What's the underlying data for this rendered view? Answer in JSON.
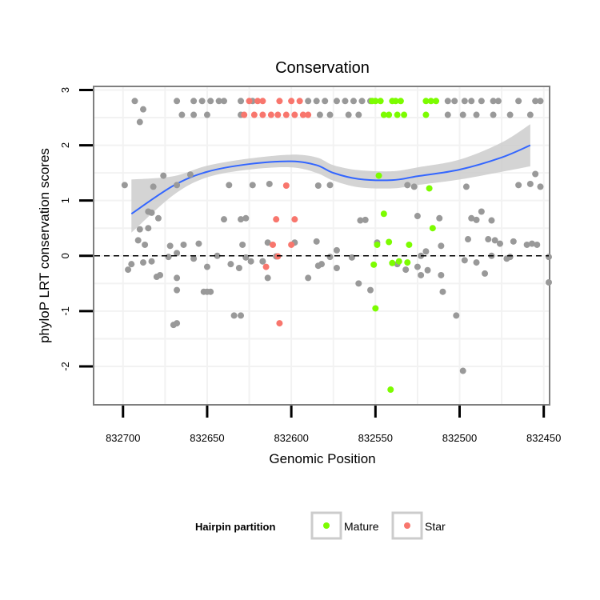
{
  "chart_data": {
    "type": "scatter",
    "title": "Conservation",
    "xlabel": "Genomic Position",
    "ylabel": "phyloP LRT conservation scores",
    "x_reversed": true,
    "xlim": [
      832717,
      832447
    ],
    "ylim": [
      -2.68,
      3.05
    ],
    "xticks": [
      832700,
      832650,
      832600,
      832550,
      832500,
      832450
    ],
    "yticks": [
      -2,
      -1,
      0,
      1,
      2,
      3
    ],
    "reference_line": {
      "y": 0,
      "style": "dashed"
    },
    "legend": {
      "title": "Hairpin partition",
      "position": "bottom",
      "entries": [
        {
          "label": "Mature",
          "color": "#7cfc00"
        },
        {
          "label": "Star",
          "color": "#f8766d"
        }
      ]
    },
    "colors": {
      "other": "#999999",
      "Mature": "#7cfc00",
      "Star": "#f8766d",
      "smooth": "#3366ff",
      "band": "#cccccc"
    },
    "smooth": {
      "x": [
        832695,
        832670,
        832650,
        832625,
        832600,
        832585,
        832575,
        832560,
        832540,
        832525,
        832500,
        832475,
        832458
      ],
      "y": [
        0.76,
        1.27,
        1.52,
        1.66,
        1.71,
        1.64,
        1.5,
        1.39,
        1.37,
        1.44,
        1.56,
        1.78,
        2.0
      ],
      "lower": [
        0.42,
        1.1,
        1.42,
        1.56,
        1.6,
        1.5,
        1.36,
        1.24,
        1.22,
        1.28,
        1.38,
        1.52,
        1.62
      ],
      "upper": [
        1.38,
        1.44,
        1.63,
        1.76,
        1.83,
        1.78,
        1.64,
        1.55,
        1.53,
        1.6,
        1.74,
        2.05,
        2.38
      ]
    },
    "series": [
      {
        "name": "Mature",
        "points": [
          [
            832552,
            2.8
          ],
          [
            832550,
            2.8
          ],
          [
            832547,
            2.8
          ],
          [
            832540,
            2.8
          ],
          [
            832538,
            2.8
          ],
          [
            832535,
            2.8
          ],
          [
            832520,
            2.8
          ],
          [
            832517,
            2.8
          ],
          [
            832514,
            2.8
          ],
          [
            832545,
            2.55
          ],
          [
            832542,
            2.55
          ],
          [
            832537,
            2.55
          ],
          [
            832533,
            2.55
          ],
          [
            832520,
            2.55
          ],
          [
            832548,
            1.45
          ],
          [
            832518,
            1.22
          ],
          [
            832545,
            0.76
          ],
          [
            832516,
            0.5
          ],
          [
            832542,
            0.25
          ],
          [
            832549,
            0.2
          ],
          [
            832551,
            -0.16
          ],
          [
            832540,
            -0.13
          ],
          [
            832536,
            -0.1
          ],
          [
            832531,
            -0.12
          ],
          [
            832550,
            -0.95
          ],
          [
            832541,
            -2.42
          ],
          [
            832530,
            0.2
          ]
        ]
      },
      {
        "name": "Star",
        "points": [
          [
            832625,
            2.8
          ],
          [
            832620,
            2.8
          ],
          [
            832617,
            2.8
          ],
          [
            832607,
            2.8
          ],
          [
            832600,
            2.8
          ],
          [
            832595,
            2.8
          ],
          [
            832628,
            2.55
          ],
          [
            832622,
            2.55
          ],
          [
            832617,
            2.55
          ],
          [
            832612,
            2.55
          ],
          [
            832608,
            2.55
          ],
          [
            832603,
            2.55
          ],
          [
            832598,
            2.55
          ],
          [
            832593,
            2.55
          ],
          [
            832590,
            2.55
          ],
          [
            832603,
            1.27
          ],
          [
            832609,
            0.66
          ],
          [
            832598,
            0.66
          ],
          [
            832611,
            0.2
          ],
          [
            832600,
            0.2
          ],
          [
            832615,
            -0.2
          ],
          [
            832608,
            -0.01
          ],
          [
            832607,
            -1.22
          ]
        ]
      },
      {
        "name": "",
        "points": [
          [
            832693,
            2.8
          ],
          [
            832668,
            2.8
          ],
          [
            832658,
            2.8
          ],
          [
            832653,
            2.8
          ],
          [
            832648,
            2.8
          ],
          [
            832643,
            2.8
          ],
          [
            832640,
            2.8
          ],
          [
            832630,
            2.8
          ],
          [
            832623,
            2.8
          ],
          [
            832590,
            2.8
          ],
          [
            832585,
            2.8
          ],
          [
            832580,
            2.8
          ],
          [
            832573,
            2.8
          ],
          [
            832568,
            2.8
          ],
          [
            832563,
            2.8
          ],
          [
            832558,
            2.8
          ],
          [
            832553,
            2.8
          ],
          [
            832507,
            2.8
          ],
          [
            832503,
            2.8
          ],
          [
            832497,
            2.8
          ],
          [
            832493,
            2.8
          ],
          [
            832487,
            2.8
          ],
          [
            832480,
            2.8
          ],
          [
            832477,
            2.8
          ],
          [
            832465,
            2.8
          ],
          [
            832455,
            2.8
          ],
          [
            832452,
            2.8
          ],
          [
            832665,
            2.55
          ],
          [
            832658,
            2.55
          ],
          [
            832650,
            2.55
          ],
          [
            832630,
            2.55
          ],
          [
            832583,
            2.55
          ],
          [
            832577,
            2.55
          ],
          [
            832566,
            2.55
          ],
          [
            832560,
            2.55
          ],
          [
            832507,
            2.55
          ],
          [
            832498,
            2.55
          ],
          [
            832490,
            2.55
          ],
          [
            832480,
            2.55
          ],
          [
            832470,
            2.55
          ],
          [
            832458,
            2.55
          ],
          [
            832688,
            2.65
          ],
          [
            832690,
            2.42
          ],
          [
            832699,
            1.28
          ],
          [
            832682,
            1.25
          ],
          [
            832676,
            1.45
          ],
          [
            832668,
            1.28
          ],
          [
            832660,
            1.47
          ],
          [
            832637,
            1.28
          ],
          [
            832623,
            1.28
          ],
          [
            832613,
            1.3
          ],
          [
            832584,
            1.27
          ],
          [
            832577,
            1.28
          ],
          [
            832531,
            1.28
          ],
          [
            832527,
            1.25
          ],
          [
            832496,
            1.25
          ],
          [
            832465,
            1.28
          ],
          [
            832458,
            1.3
          ],
          [
            832455,
            1.48
          ],
          [
            832452,
            1.25
          ],
          [
            832685,
            0.8
          ],
          [
            832683,
            0.78
          ],
          [
            832679,
            0.68
          ],
          [
            832640,
            0.66
          ],
          [
            832627,
            0.68
          ],
          [
            832630,
            0.66
          ],
          [
            832559,
            0.64
          ],
          [
            832556,
            0.65
          ],
          [
            832525,
            0.72
          ],
          [
            832512,
            0.68
          ],
          [
            832493,
            0.68
          ],
          [
            832490,
            0.65
          ],
          [
            832487,
            0.8
          ],
          [
            832481,
            0.64
          ],
          [
            832690,
            0.48
          ],
          [
            832685,
            0.5
          ],
          [
            832691,
            0.28
          ],
          [
            832687,
            0.2
          ],
          [
            832672,
            0.18
          ],
          [
            832664,
            0.2
          ],
          [
            832655,
            0.22
          ],
          [
            832629,
            0.2
          ],
          [
            832614,
            0.24
          ],
          [
            832598,
            0.24
          ],
          [
            832585,
            0.26
          ],
          [
            832573,
            0.1
          ],
          [
            832549,
            0.24
          ],
          [
            832520,
            0.08
          ],
          [
            832511,
            0.18
          ],
          [
            832495,
            0.3
          ],
          [
            832483,
            0.3
          ],
          [
            832479,
            0.28
          ],
          [
            832476,
            0.22
          ],
          [
            832468,
            0.26
          ],
          [
            832460,
            0.2
          ],
          [
            832457,
            0.22
          ],
          [
            832454,
            0.2
          ],
          [
            832447,
            -0.02
          ],
          [
            832697,
            -0.25
          ],
          [
            832695,
            -0.15
          ],
          [
            832688,
            -0.12
          ],
          [
            832683,
            -0.1
          ],
          [
            832680,
            -0.38
          ],
          [
            832678,
            -0.35
          ],
          [
            832673,
            -0.02
          ],
          [
            832668,
            0.05
          ],
          [
            832658,
            -0.05
          ],
          [
            832650,
            -0.2
          ],
          [
            832644,
            0.0
          ],
          [
            832636,
            -0.15
          ],
          [
            832631,
            -0.22
          ],
          [
            832627,
            -0.03
          ],
          [
            832624,
            -0.1
          ],
          [
            832617,
            -0.1
          ],
          [
            832609,
            -0.01
          ],
          [
            832590,
            -0.4
          ],
          [
            832582,
            -0.15
          ],
          [
            832564,
            -0.03
          ],
          [
            832560,
            -0.5
          ],
          [
            832553,
            -0.62
          ],
          [
            832537,
            -0.15
          ],
          [
            832532,
            -0.25
          ],
          [
            832523,
            -0.35
          ],
          [
            832519,
            -0.26
          ],
          [
            832511,
            -0.35
          ],
          [
            832497,
            -0.08
          ],
          [
            832485,
            -0.32
          ],
          [
            832481,
            0.0
          ],
          [
            832470,
            -0.02
          ],
          [
            832447,
            -0.48
          ],
          [
            832668,
            -0.4
          ],
          [
            832652,
            -0.65
          ],
          [
            832648,
            -0.65
          ],
          [
            832617,
            -0.1
          ],
          [
            832614,
            -0.4
          ],
          [
            832584,
            -0.18
          ],
          [
            832577,
            -0.02
          ],
          [
            832573,
            -0.22
          ],
          [
            832525,
            -0.2
          ],
          [
            832523,
            0.0
          ],
          [
            832510,
            -0.65
          ],
          [
            832490,
            -0.12
          ],
          [
            832472,
            -0.05
          ],
          [
            832668,
            -0.62
          ],
          [
            832650,
            -0.65
          ],
          [
            832634,
            -1.08
          ],
          [
            832630,
            -1.08
          ],
          [
            832502,
            -1.08
          ],
          [
            832498,
            -2.08
          ],
          [
            832670,
            -1.25
          ],
          [
            832668,
            -1.22
          ]
        ]
      }
    ]
  }
}
